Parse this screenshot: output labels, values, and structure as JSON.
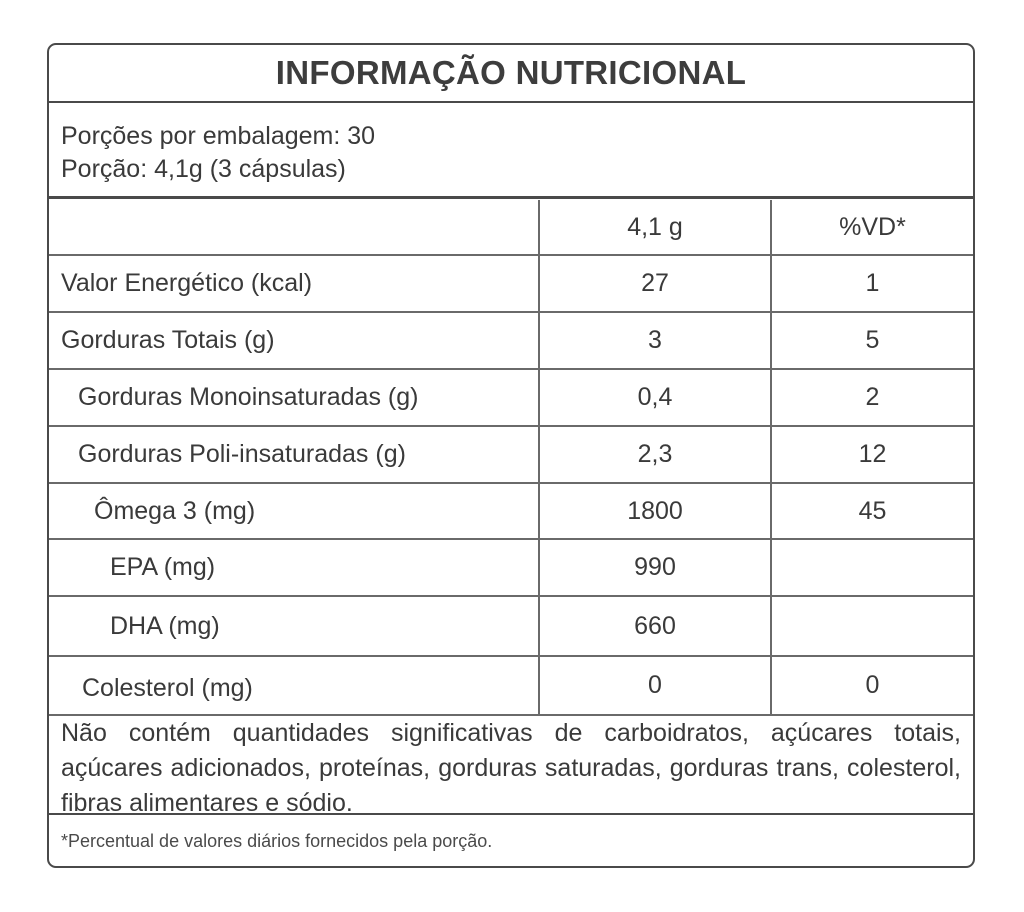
{
  "title": "INFORMAÇÃO NUTRICIONAL",
  "serving": {
    "line1": "Porções por embalagem: 30",
    "line2": "Porção: 4,1g (3 cápsulas)"
  },
  "table": {
    "header": {
      "label": "",
      "value": "4,1 g",
      "vd": "%VD*"
    },
    "rows": [
      {
        "label": "Valor Energético (kcal)",
        "value": "27",
        "vd": "1"
      },
      {
        "label": "Gorduras Totais (g)",
        "value": "3",
        "vd": "5"
      },
      {
        "label": "Gorduras Monoinsaturadas (g)",
        "value": "0,4",
        "vd": "2"
      },
      {
        "label": "Gorduras Poli-insaturadas (g)",
        "value": "2,3",
        "vd": "12"
      },
      {
        "label": "Ômega 3 (mg)",
        "value": "1800",
        "vd": "45"
      },
      {
        "label": "EPA (mg)",
        "value": "990",
        "vd": ""
      },
      {
        "label": "DHA (mg)",
        "value": "660",
        "vd": ""
      },
      {
        "label": "Colesterol (mg)",
        "value": "0",
        "vd": "0"
      }
    ]
  },
  "note": "Não contém quantidades significativas de carboidratos, açúcares totais, açúcares adicionados, proteínas, gorduras saturadas, gorduras trans, colesterol, fibras alimentares e sódio.",
  "footnote": "*Percentual de valores diários fornecidos pela porção."
}
